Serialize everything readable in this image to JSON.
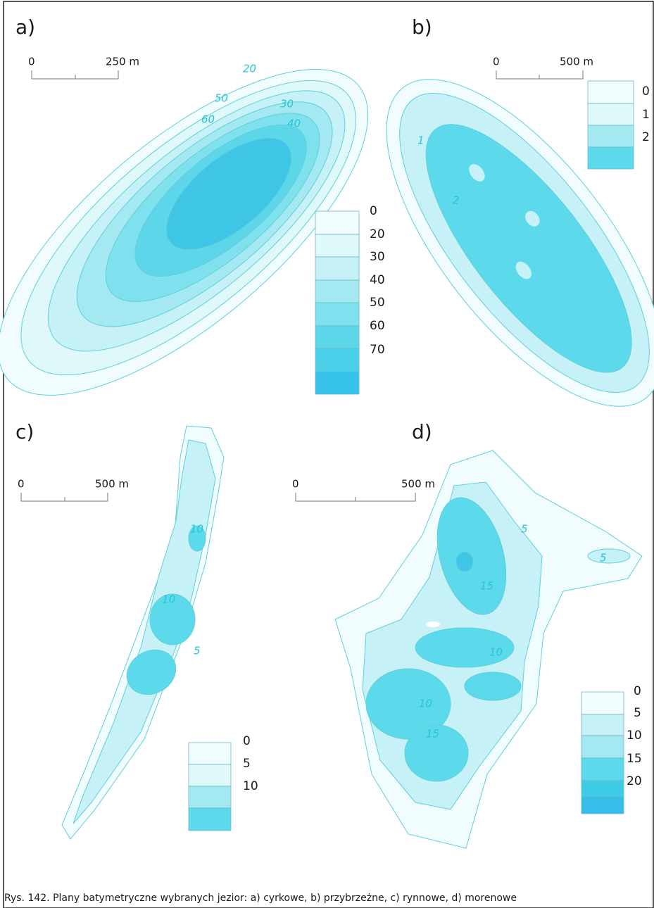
{
  "panels": [
    {
      "label": "a)",
      "scale": {
        "start": "0",
        "end": "250 m"
      },
      "legend": [
        0,
        20,
        30,
        40,
        50,
        60,
        70
      ],
      "contour_labels": [
        "20",
        "30",
        "40",
        "50",
        "60"
      ]
    },
    {
      "label": "b)",
      "scale": {
        "start": "0",
        "end": "500 m"
      },
      "legend": [
        0,
        1,
        2
      ],
      "contour_labels": [
        "1",
        "2"
      ]
    },
    {
      "label": "c)",
      "scale": {
        "start": "0",
        "end": "500 m"
      },
      "legend": [
        0,
        5,
        10
      ],
      "contour_labels": [
        "10",
        "10",
        "5"
      ]
    },
    {
      "label": "d)",
      "scale": {
        "start": "0",
        "end": "500 m"
      },
      "legend": [
        0,
        5,
        10,
        15,
        20
      ],
      "contour_labels": [
        "5",
        "5",
        "15",
        "10",
        "10",
        "15"
      ]
    }
  ],
  "caption": "Rys. 142. Plany batymetryczne wybranych jezior: a) cyrkowe, b) przybrzeżne, c) rynnowe, d) morenowe"
}
